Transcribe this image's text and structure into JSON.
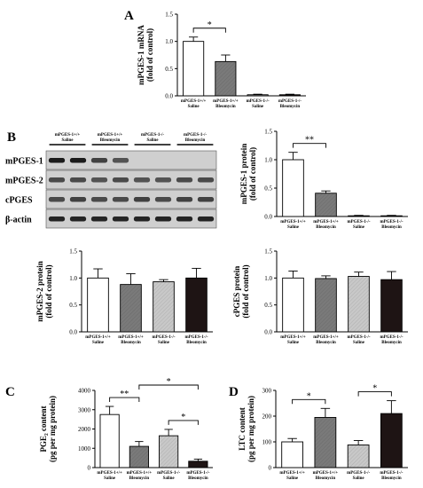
{
  "figure": {
    "blot": {
      "letter": "B",
      "headers": [
        {
          "line1": "mPGES-1+/+",
          "line2": "Saline"
        },
        {
          "line1": "mPGES-1+/+",
          "line2": "Bleomycin"
        },
        {
          "line1": "mPGES-1-/-",
          "line2": "Saline"
        },
        {
          "line1": "mPGES-1-/-",
          "line2": "Bleomycin"
        }
      ],
      "rows": [
        {
          "label": "mPGES-1",
          "intensity": [
            0.95,
            0.95,
            0.75,
            0.65,
            0.0,
            0.0,
            0.0,
            0.0
          ]
        },
        {
          "label": "mPGES-2",
          "intensity": [
            0.7,
            0.7,
            0.65,
            0.7,
            0.65,
            0.65,
            0.7,
            0.7
          ]
        },
        {
          "label": "cPGES",
          "intensity": [
            0.7,
            0.75,
            0.7,
            0.7,
            0.75,
            0.7,
            0.75,
            0.75
          ]
        },
        {
          "label": "β-actin",
          "intensity": [
            0.9,
            0.9,
            0.9,
            0.9,
            0.9,
            0.9,
            0.9,
            0.9
          ]
        }
      ]
    }
  },
  "chart_data": [
    {
      "id": "A",
      "letter": "A",
      "type": "bar",
      "categories": [
        {
          "line1": "mPGES-1+/+",
          "line2": "Saline"
        },
        {
          "line1": "mPGES-1+/+",
          "line2": "Bleomycin"
        },
        {
          "line1": "mPGES-1-/-",
          "line2": "Saline"
        },
        {
          "line1": "mPGES-1-/-",
          "line2": "Bleomycin"
        }
      ],
      "values": [
        1.0,
        0.63,
        0.02,
        0.02
      ],
      "errors": [
        0.08,
        0.12,
        0.01,
        0.01
      ],
      "ylabel_line1": "mPGES-1 mRNA",
      "ylabel_line2": "(fold of control)",
      "ylim": [
        0,
        1.5
      ],
      "yticks": [
        "0.0",
        "0.5",
        "1.0",
        "1.5"
      ],
      "significance": [
        {
          "from": 0,
          "to": 1,
          "label": "*"
        }
      ]
    },
    {
      "id": "B1",
      "letter": "",
      "type": "bar",
      "categories": [
        {
          "line1": "mPGES-1+/+",
          "line2": "Saline"
        },
        {
          "line1": "mPGES-1+/+",
          "line2": "Bleomycin"
        },
        {
          "line1": "mPGES-1-/-",
          "line2": "Saline"
        },
        {
          "line1": "mPGES-1-/-",
          "line2": "Bleomycin"
        }
      ],
      "values": [
        1.0,
        0.41,
        0.01,
        0.01
      ],
      "errors": [
        0.13,
        0.04,
        0.01,
        0.01
      ],
      "ylabel_line1": "mPGES-1 protein",
      "ylabel_line2": "(fold of control)",
      "ylim": [
        0,
        1.5
      ],
      "yticks": [
        "0.0",
        "0.5",
        "1.0",
        "1.5"
      ],
      "significance": [
        {
          "from": 0,
          "to": 1,
          "label": "**"
        }
      ]
    },
    {
      "id": "B2",
      "letter": "",
      "type": "bar",
      "categories": [
        {
          "line1": "mPGES-1+/+",
          "line2": "Saline"
        },
        {
          "line1": "mPGES-1+/+",
          "line2": "Bleomycin"
        },
        {
          "line1": "mPGES-1-/-",
          "line2": "Saline"
        },
        {
          "line1": "mPGES-1-/-",
          "line2": "Bleomycin"
        }
      ],
      "values": [
        1.0,
        0.88,
        0.93,
        1.0
      ],
      "errors": [
        0.17,
        0.2,
        0.04,
        0.18
      ],
      "ylabel_line1": "mPGES-2 protein",
      "ylabel_line2": "(fold of control)",
      "ylim": [
        0,
        1.5
      ],
      "yticks": [
        "0.0",
        "0.5",
        "1.0",
        "1.5"
      ],
      "significance": []
    },
    {
      "id": "B3",
      "letter": "",
      "type": "bar",
      "categories": [
        {
          "line1": "mPGES-1+/+",
          "line2": "Saline"
        },
        {
          "line1": "mPGES-1+/+",
          "line2": "Bleomycin"
        },
        {
          "line1": "mPGES-1-/-",
          "line2": "Saline"
        },
        {
          "line1": "mPGES-1-/-",
          "line2": "Bleomycin"
        }
      ],
      "values": [
        1.0,
        0.99,
        1.03,
        0.97
      ],
      "errors": [
        0.13,
        0.05,
        0.08,
        0.15
      ],
      "ylabel_line1": "cPGES protein",
      "ylabel_line2": "(fold of control)",
      "ylim": [
        0,
        1.5
      ],
      "yticks": [
        "0.0",
        "0.5",
        "1.0",
        "1.5"
      ],
      "significance": []
    },
    {
      "id": "C",
      "letter": "C",
      "type": "bar",
      "categories": [
        {
          "line1": "mPGES-1+/+",
          "line2": "Saline"
        },
        {
          "line1": "mPGES-1+/+",
          "line2": "Bleomycin"
        },
        {
          "line1": "mPGES-1-/-",
          "line2": "Saline"
        },
        {
          "line1": "mPGES-1-/-",
          "line2": "Bleomycin"
        }
      ],
      "values": [
        2750,
        1100,
        1650,
        330
      ],
      "errors": [
        420,
        250,
        330,
        110
      ],
      "ylabel_line1": "PGE₂ content",
      "ylabel_line2": "(pg per mg protein)",
      "ylim": [
        0,
        4000
      ],
      "yticks": [
        "0",
        "1000",
        "2000",
        "3000",
        "4000"
      ],
      "significance": [
        {
          "from": 0,
          "to": 1,
          "label": "**"
        },
        {
          "from": 2,
          "to": 3,
          "label": "*"
        },
        {
          "from": 1,
          "to": 3,
          "label": "*"
        }
      ]
    },
    {
      "id": "D",
      "letter": "D",
      "type": "bar",
      "categories": [
        {
          "line1": "mPGES-1+/+",
          "line2": "Saline"
        },
        {
          "line1": "mPGES-1+/+",
          "line2": "Bleomycin"
        },
        {
          "line1": "mPGES-1-/-",
          "line2": "Saline"
        },
        {
          "line1": "mPGES-1-/-",
          "line2": "Bleomycin"
        }
      ],
      "values": [
        100,
        195,
        88,
        210
      ],
      "errors": [
        13,
        35,
        17,
        50
      ],
      "ylabel_line1": "LTC content",
      "ylabel_line2": "(pg per mg protein)",
      "ylim": [
        0,
        300
      ],
      "yticks": [
        "0",
        "100",
        "200",
        "300"
      ],
      "significance": [
        {
          "from": 0,
          "to": 1,
          "label": "*"
        },
        {
          "from": 2,
          "to": 3,
          "label": "*"
        }
      ]
    }
  ]
}
